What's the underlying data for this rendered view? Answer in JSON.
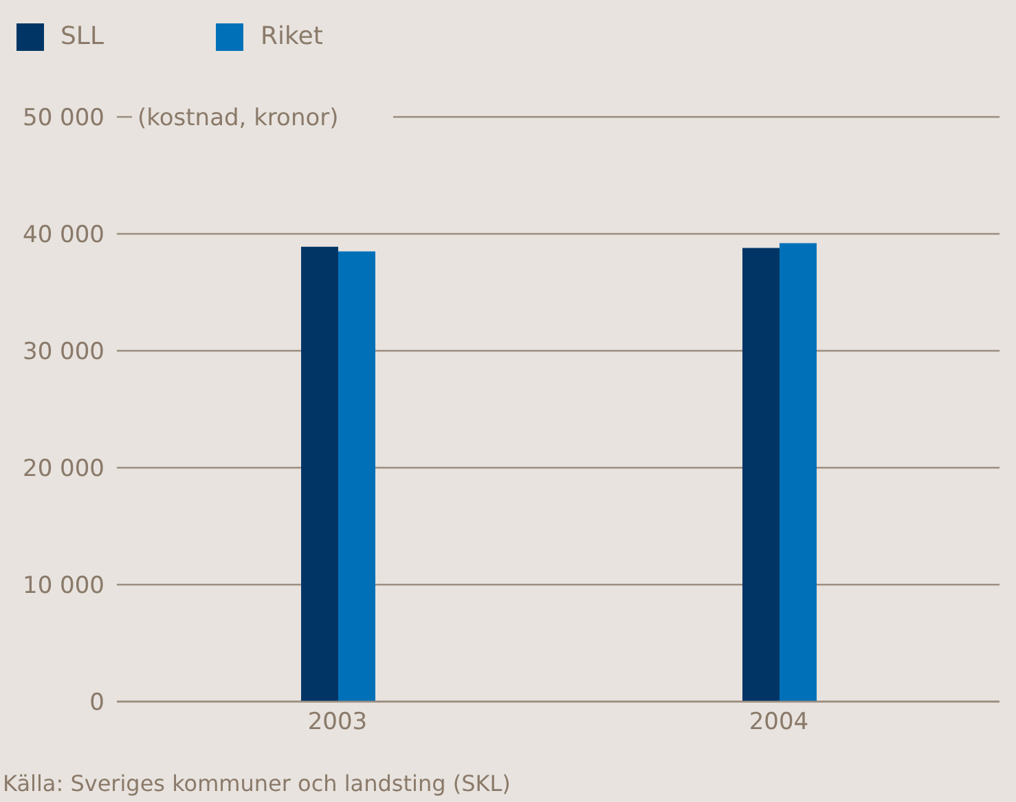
{
  "chart_data": {
    "type": "bar",
    "ylabel": "(kostnad, kronor)",
    "categories": [
      "2003",
      "2004"
    ],
    "series": [
      {
        "name": "SLL",
        "color": "#003566",
        "values": [
          38900,
          38800
        ]
      },
      {
        "name": "Riket",
        "color": "#0071b9",
        "values": [
          38500,
          39200
        ]
      }
    ],
    "ylim": [
      0,
      50000
    ],
    "yticks": [
      {
        "value": 0,
        "label": "0"
      },
      {
        "value": 10000,
        "label": "10 000"
      },
      {
        "value": 20000,
        "label": "20 000"
      },
      {
        "value": 30000,
        "label": "30 000"
      },
      {
        "value": 40000,
        "label": "40 000"
      },
      {
        "value": 50000,
        "label": "50 000"
      }
    ],
    "grid": "y",
    "legend": "top left",
    "annotations": [
      "Källa: Sveriges kommuner och landsting (SKL)"
    ]
  }
}
